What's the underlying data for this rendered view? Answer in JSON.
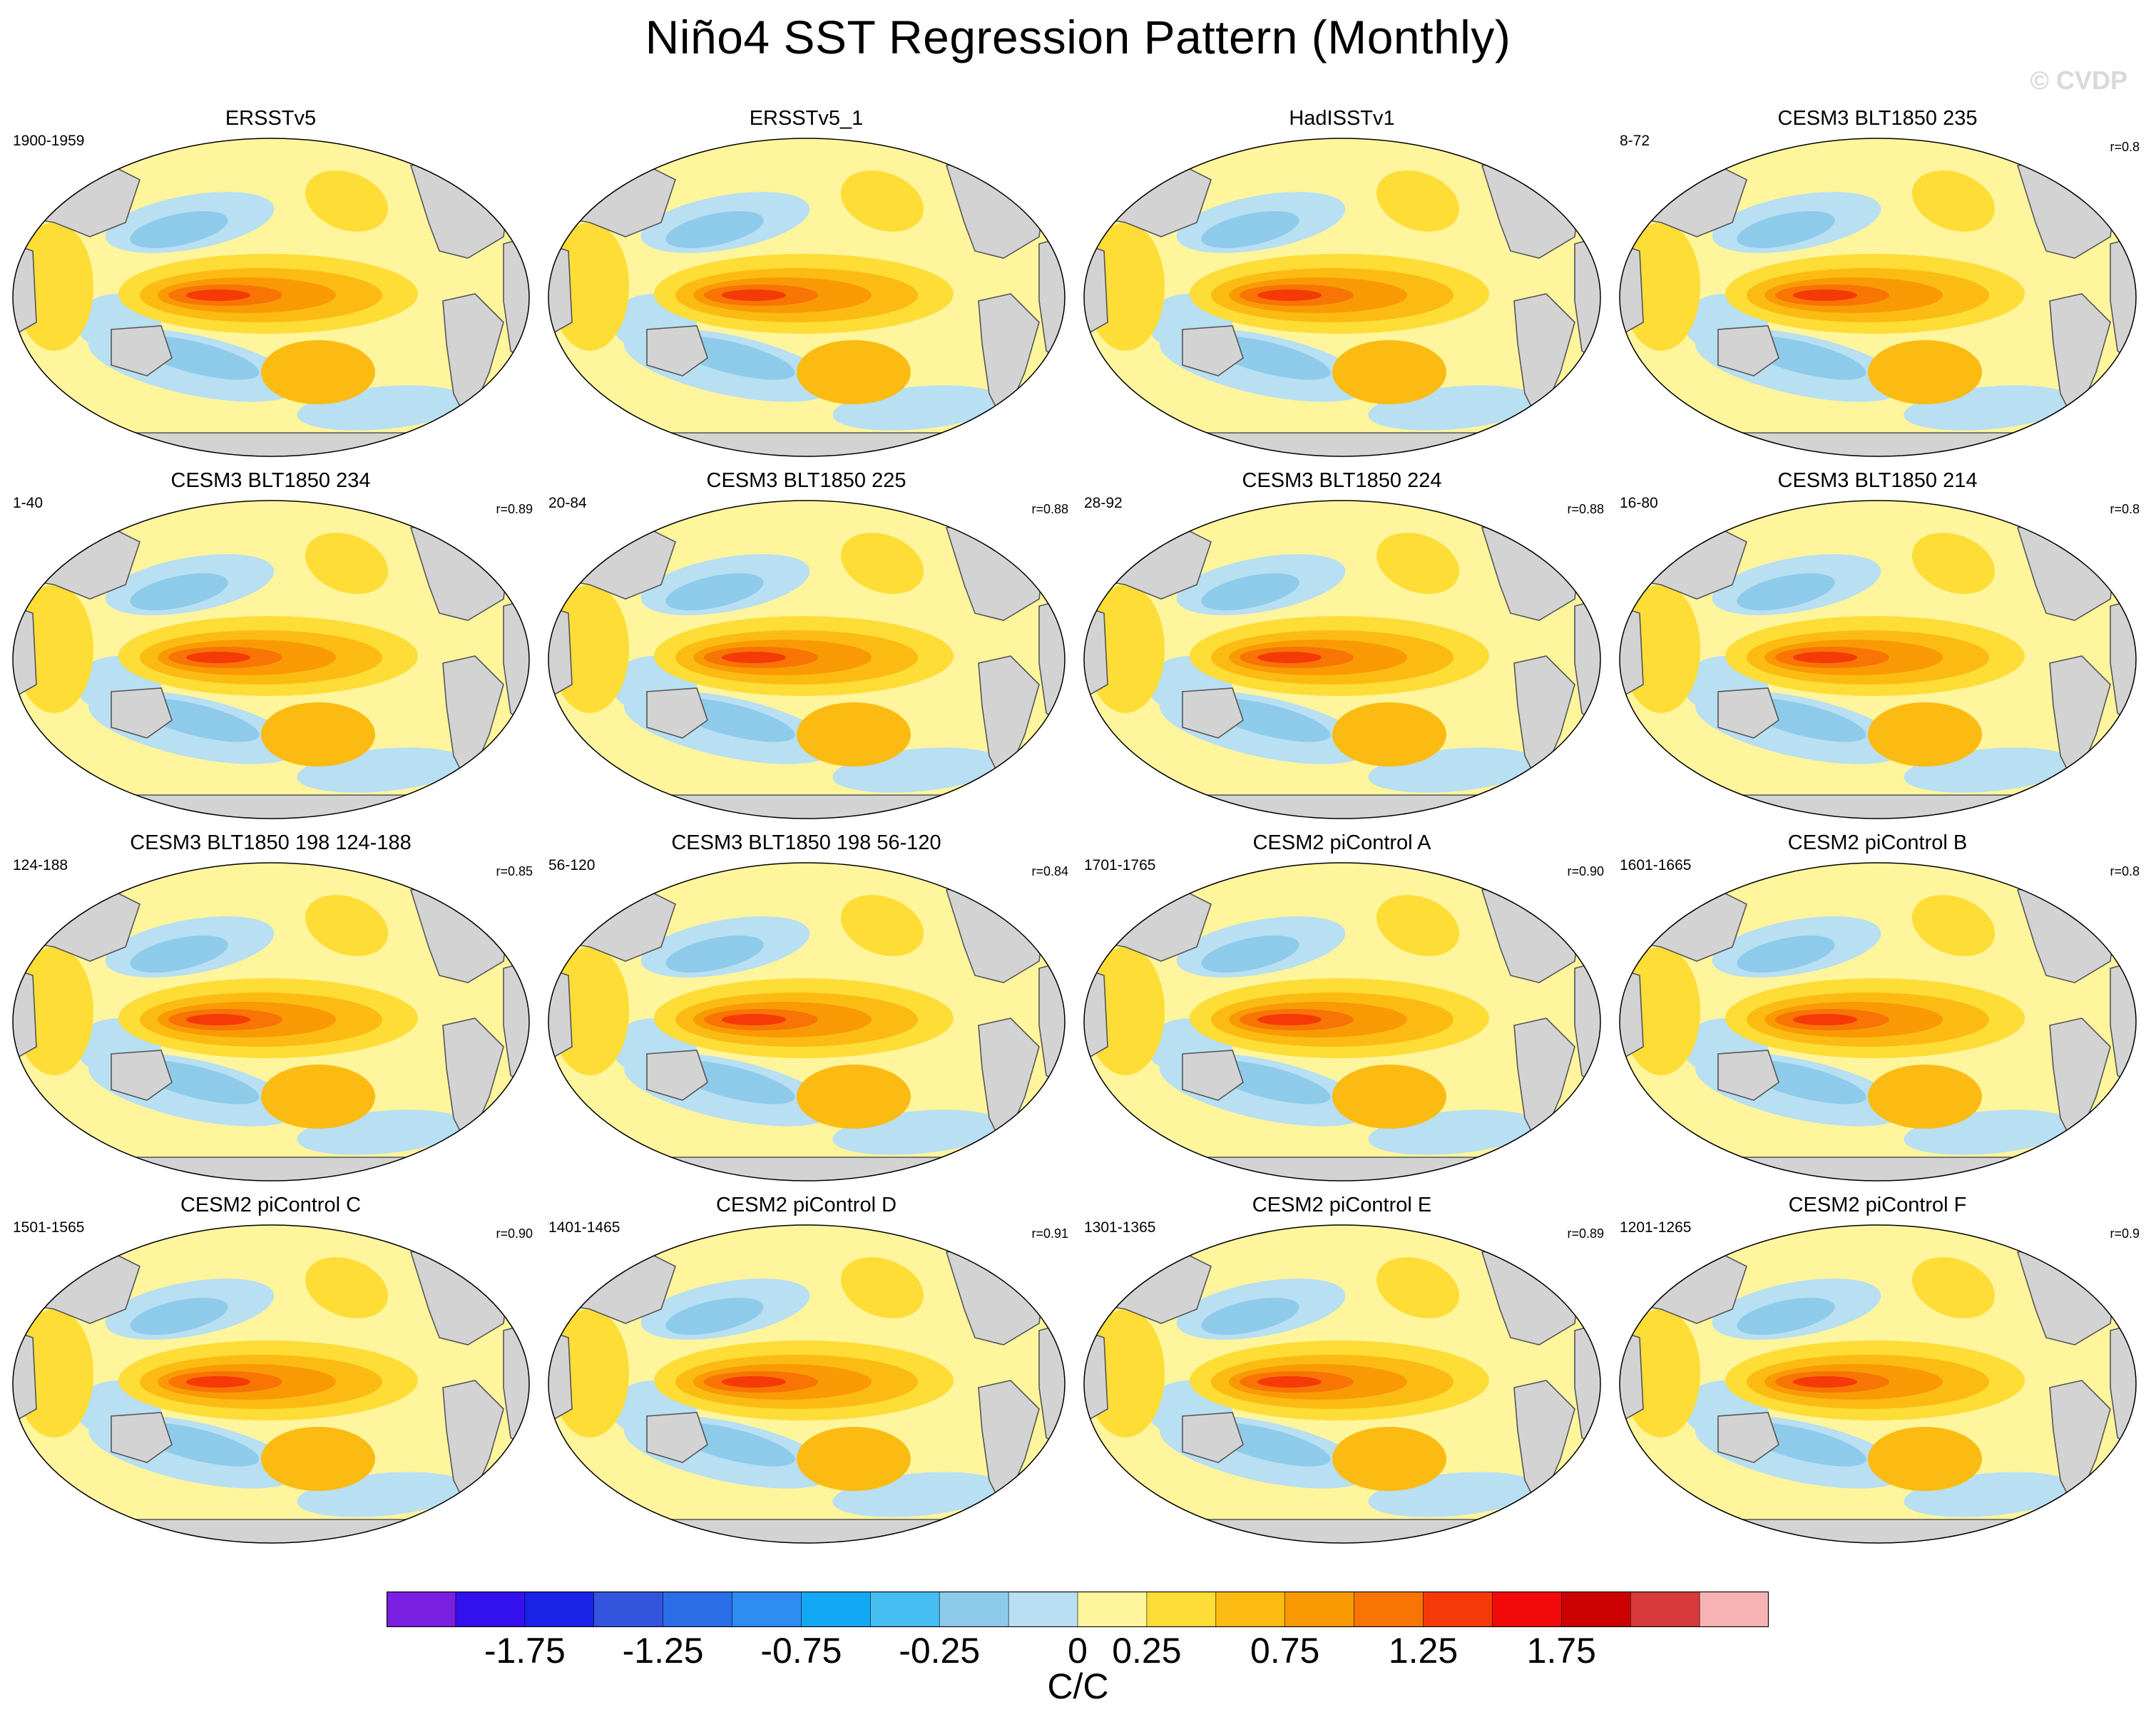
{
  "title": "Niño4 SST Regression Pattern (Monthly)",
  "watermark": "© CVDP",
  "panels": [
    {
      "title": "ERSSTv5",
      "period": "1900-1959",
      "corr": ""
    },
    {
      "title": "ERSSTv5_1",
      "period": "",
      "corr": ""
    },
    {
      "title": "HadISSTv1",
      "period": "",
      "corr": ""
    },
    {
      "title": "CESM3 BLT1850 235",
      "period": "8-72",
      "corr": "r=0.8"
    },
    {
      "title": "CESM3 BLT1850 234",
      "period": "1-40",
      "corr": "r=0.89"
    },
    {
      "title": "CESM3 BLT1850 225",
      "period": "20-84",
      "corr": "r=0.88"
    },
    {
      "title": "CESM3 BLT1850 224",
      "period": "28-92",
      "corr": "r=0.88"
    },
    {
      "title": "CESM3 BLT1850 214",
      "period": "16-80",
      "corr": "r=0.8"
    },
    {
      "title": "CESM3 BLT1850 198 124-188",
      "period": "124-188",
      "corr": "r=0.85"
    },
    {
      "title": "CESM3 BLT1850 198 56-120",
      "period": "56-120",
      "corr": "r=0.84"
    },
    {
      "title": "CESM2 piControl A",
      "period": "1701-1765",
      "corr": "r=0.90"
    },
    {
      "title": "CESM2 piControl B",
      "period": "1601-1665",
      "corr": "r=0.8"
    },
    {
      "title": "CESM2 piControl C",
      "period": "1501-1565",
      "corr": "r=0.90"
    },
    {
      "title": "CESM2 piControl D",
      "period": "1401-1465",
      "corr": "r=0.91"
    },
    {
      "title": "CESM2 piControl E",
      "period": "1301-1365",
      "corr": "r=0.89"
    },
    {
      "title": "CESM2 piControl F",
      "period": "1201-1265",
      "corr": "r=0.9"
    }
  ],
  "colorbar": {
    "colors": [
      "#7b1fe0",
      "#3311ee",
      "#1a22e8",
      "#3355dd",
      "#2a6ee8",
      "#2d8ef0",
      "#13a8f4",
      "#45bdf0",
      "#8ecbeb",
      "#b8dff2",
      "#fff59d",
      "#fddd36",
      "#fbbb12",
      "#f99a05",
      "#f77405",
      "#f53a08",
      "#f20a0a",
      "#cc0000",
      "#d63a3a",
      "#f7b3b3"
    ],
    "labels": [
      "-1.75",
      "-1.25",
      "-0.75",
      "-0.25",
      "0",
      "0.25",
      "0.75",
      "1.25",
      "1.75"
    ],
    "units": "C/C"
  },
  "chart_data": {
    "type": "heatmap",
    "title": "Niño4 SST Regression Pattern (Monthly)",
    "variable": "SST regression on Niño4 index",
    "units": "C/C",
    "projection": "Robinson (Pacific-centered)",
    "panels": [
      "ERSSTv5",
      "ERSSTv5_1",
      "HadISSTv1",
      "CESM3 BLT1850 235",
      "CESM3 BLT1850 234",
      "CESM3 BLT1850 225",
      "CESM3 BLT1850 224",
      "CESM3 BLT1850 214",
      "CESM3 BLT1850 198 124-188",
      "CESM3 BLT1850 198 56-120",
      "CESM2 piControl A",
      "CESM2 piControl B",
      "CESM2 piControl C",
      "CESM2 piControl D",
      "CESM2 piControl E",
      "CESM2 piControl F"
    ],
    "contour_levels": [
      -2.0,
      -1.75,
      -1.5,
      -1.25,
      -1.0,
      -0.75,
      -0.5,
      -0.25,
      0,
      0.25,
      0.5,
      0.75,
      1.0,
      1.25,
      1.5,
      1.75,
      2.0
    ],
    "colorbar_tick_labels": [
      "-1.75",
      "-1.25",
      "-0.75",
      "-0.25",
      "0",
      "0.25",
      "0.75",
      "1.25",
      "1.75"
    ],
    "pattern": "Warm tongue (up to ~1.25-1.5 C/C) along central/eastern equatorial Pacific; horseshoe of cool anomalies (-0.25 to -0.5 C/C) in western Pacific extending poleward; weak warm anomalies in Indian Ocean and North Pacific coast",
    "correlations": [
      "",
      "",
      "",
      "0.8",
      "0.89",
      "0.88",
      "0.88",
      "0.8",
      "0.85",
      "0.84",
      "0.90",
      "0.8",
      "0.90",
      "0.91",
      "0.89",
      "0.9"
    ]
  }
}
